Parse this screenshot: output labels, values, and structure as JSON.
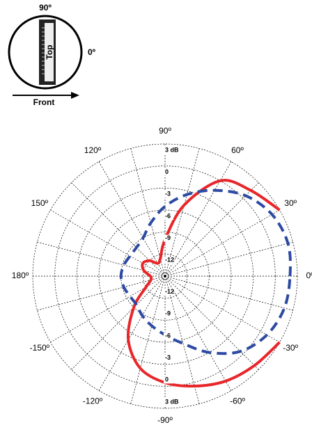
{
  "icon": {
    "angle_top": "90º",
    "angle_right": "0º",
    "device_label": "Top",
    "arrow_label": "Front"
  },
  "chart_data": {
    "type": "polar",
    "theta": [
      0,
      15,
      30,
      45,
      60,
      75,
      90,
      105,
      120,
      135,
      150,
      165,
      180,
      -165,
      -150,
      -135,
      -120,
      -105,
      -90,
      -75,
      -60,
      -45,
      -30,
      -15
    ],
    "rlim": [
      -15,
      3
    ],
    "rticks": [
      -12,
      -9,
      -6,
      -3,
      0,
      {
        "value": 3,
        "label": "3 dB"
      }
    ],
    "thetaticks": [
      {
        "value": 90,
        "label": "90º"
      },
      {
        "value": 60,
        "label": "60º"
      },
      {
        "value": 30,
        "label": "30º"
      },
      {
        "value": 0,
        "label": "0º"
      },
      {
        "value": -30,
        "label": "-30º"
      },
      {
        "value": -60,
        "label": "-60º"
      },
      {
        "value": -90,
        "label": "-90º"
      },
      {
        "value": -120,
        "label": "-120º"
      },
      {
        "value": -150,
        "label": "-150º"
      },
      {
        "value": 180,
        "label": "180º"
      },
      {
        "value": 150,
        "label": "150º"
      },
      {
        "value": 120,
        "label": "120º"
      }
    ],
    "grid": true,
    "series": [
      {
        "color": "#e8262a",
        "line": "solid",
        "values": [
          null,
          null,
          3,
          1.5,
          0,
          -5,
          -10,
          -12.5,
          -13,
          -12,
          -11.5,
          -12,
          -13,
          -13,
          -12,
          -9,
          -5,
          -2,
          -0.5,
          0.5,
          1.5,
          2.2,
          3,
          null
        ]
      },
      {
        "color": "#2d4aa3",
        "line": "dashed",
        "values": [
          2,
          2.3,
          1.8,
          0.5,
          -1.5,
          -3.5,
          -5.5,
          -7.5,
          -9,
          -9.5,
          -9.5,
          -9.2,
          -9,
          -9.2,
          -9.5,
          -9.5,
          -8.8,
          -8,
          -7,
          -5.5,
          -3,
          -0.5,
          1,
          1.8
        ]
      }
    ]
  }
}
